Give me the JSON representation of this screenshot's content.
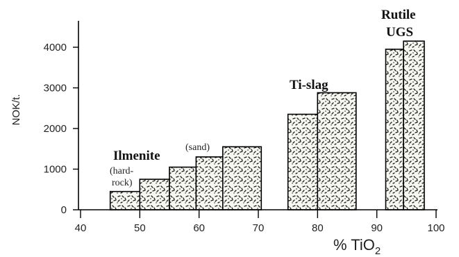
{
  "chart_data": {
    "type": "bar",
    "xlabel": "% TiO",
    "xlabel_subscript": "2",
    "ylabel": "NOK/t.",
    "xlim": [
      40,
      100
    ],
    "ylim": [
      0,
      4500
    ],
    "x_ticks": [
      40,
      50,
      60,
      70,
      80,
      90,
      100
    ],
    "y_ticks": [
      0,
      1000,
      2000,
      3000,
      4000
    ],
    "grid": false,
    "bars": [
      {
        "x_start": 45,
        "x_end": 50,
        "value": 450
      },
      {
        "x_start": 50,
        "x_end": 55,
        "value": 750
      },
      {
        "x_start": 55,
        "x_end": 59.5,
        "value": 1050
      },
      {
        "x_start": 59.5,
        "x_end": 64,
        "value": 1300
      },
      {
        "x_start": 64,
        "x_end": 70.5,
        "value": 1550
      },
      {
        "x_start": 75,
        "x_end": 80,
        "value": 2350
      },
      {
        "x_start": 80,
        "x_end": 86.5,
        "value": 2880
      },
      {
        "x_start": 91.5,
        "x_end": 94.5,
        "value": 3950
      },
      {
        "x_start": 94.5,
        "x_end": 98,
        "value": 4150
      }
    ],
    "annotations": {
      "ilmenite": "Ilmenite",
      "hard_line1": "(hard-",
      "hard_line2": "rock)",
      "sand": "(sand)",
      "tislag": "Ti-slag",
      "rutile": "Rutile",
      "ugs": "UGS"
    }
  },
  "colors": {
    "bar_fill": "#f7f7f2",
    "bar_stroke": "#000000",
    "speckle": "#1a1a1a"
  }
}
